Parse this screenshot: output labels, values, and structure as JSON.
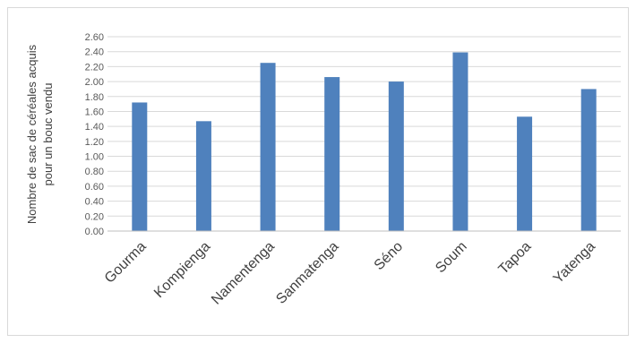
{
  "chart_data": {
    "type": "bar",
    "title": "",
    "xlabel": "",
    "ylabel_lines": [
      "Nombre de sac de céréales acquis",
      "pour un bouc vendu"
    ],
    "ylim": [
      0,
      2.6
    ],
    "yticks": [
      "0.00",
      "0.20",
      "0.40",
      "0.60",
      "0.80",
      "1.00",
      "1.20",
      "1.40",
      "1.60",
      "1.80",
      "2.00",
      "2.20",
      "2.40",
      "2.60"
    ],
    "categories": [
      "Gourma",
      "Kompienga",
      "Namentenga",
      "Sanmatenga",
      "Séno",
      "Soum",
      "Tapoa",
      "Yatenga"
    ],
    "values": [
      1.72,
      1.47,
      2.25,
      2.06,
      2.0,
      2.39,
      1.53,
      1.9
    ],
    "grid": true,
    "legend": "none",
    "bar_color": "#4f81bd"
  }
}
